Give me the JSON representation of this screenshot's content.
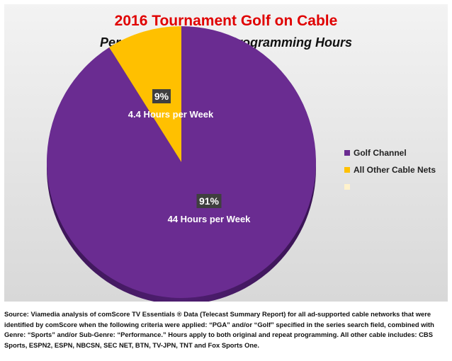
{
  "chart_data": {
    "type": "pie",
    "title": "2016 Tournament Golf on Cable",
    "subtitle": "Percentage of Yearly Programming Hours",
    "slices": [
      {
        "name": "Golf Channel",
        "value": 91,
        "percent_label": "91%",
        "hours_label": "44 Hours per Week",
        "color": "#6a2c91"
      },
      {
        "name": "All Other Cable Nets",
        "value": 9,
        "percent_label": "9%",
        "hours_label": "4.4 Hours per Week",
        "color": "#ffc000"
      }
    ],
    "legend": {
      "placement": "right",
      "entries": [
        {
          "label": "Golf Channel",
          "color": "#6a2c91"
        },
        {
          "label": "All Other Cable Nets",
          "color": "#ffc000"
        },
        {
          "label": "",
          "color": "#fff2cc"
        }
      ]
    }
  },
  "source_note": "Source: Viamedia analysis of comScore TV Essentials ® Data (Telecast Summary Report) for all ad-supported cable networks that were identified by comScore when the following criteria were applied: “PGA” and/or “Golf” specified in the series search field, combined with Genre: “Sports” and/or Sub-Genre: “Performance.” Hours apply to both original and repeat programming. All other cable includes: CBS Sports, ESPN2, ESPN, NBCSN, SEC NET, BTN, TV-JPN, TNT and Fox Sports One."
}
